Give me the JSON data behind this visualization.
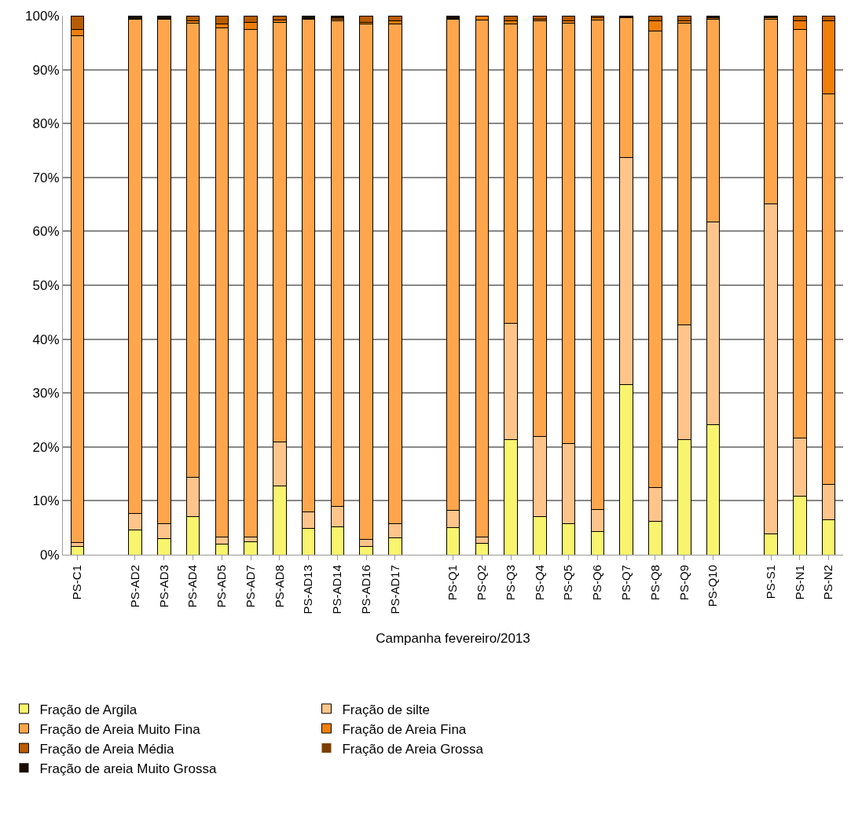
{
  "chart_data": {
    "type": "bar",
    "stacked": true,
    "xlabel": "Campanha fevereiro/2013",
    "categories": [
      "PS-C1",
      null,
      "PS-AD2",
      "PS-AD3",
      "PS-AD4",
      "PS-AD5",
      "PS-AD7",
      "PS-AD8",
      "PS-AD13",
      "PS-AD14",
      "PS-AD16",
      "PS-AD17",
      null,
      "PS-Q1",
      "PS-Q2",
      "PS-Q3",
      "PS-Q4",
      "PS-Q5",
      "PS-Q6",
      "PS-Q7",
      "PS-Q8",
      "PS-Q9",
      "PS-Q10",
      null,
      "PS-S1",
      "PS-N1",
      "PS-N2"
    ],
    "series": [
      {
        "name": "Fração de Argila",
        "color": "#f9f46e",
        "values": [
          1.5,
          null,
          4.6,
          3.0,
          7.1,
          1.9,
          2.4,
          12.8,
          4.9,
          5.2,
          1.6,
          3.2,
          null,
          5.0,
          2.1,
          21.4,
          7.0,
          5.7,
          4.3,
          31.6,
          6.2,
          21.4,
          24.1,
          null,
          3.8,
          10.9,
          6.5
        ]
      },
      {
        "name": "Fração de silte",
        "color": "#ffc48a",
        "values": [
          0.7,
          null,
          3.0,
          2.7,
          7.2,
          1.4,
          0.9,
          8.1,
          3.0,
          3.8,
          1.2,
          2.6,
          null,
          3.2,
          1.2,
          21.5,
          14.9,
          14.9,
          4.1,
          42.1,
          6.3,
          21.2,
          37.7,
          null,
          61.3,
          10.7,
          6.6
        ]
      },
      {
        "name": "Fração de Areia Muito Fina",
        "color": "#ffa64d",
        "values": [
          94.1,
          null,
          91.8,
          93.7,
          84.3,
          94.5,
          94.1,
          77.9,
          91.5,
          90.0,
          95.6,
          92.7,
          null,
          91.1,
          95.9,
          55.6,
          77.1,
          78.0,
          90.8,
          25.9,
          84.6,
          56.0,
          37.5,
          null,
          34.2,
          75.8,
          72.4
        ]
      },
      {
        "name": "Fração de Areia Fina",
        "color": "#f07e0a",
        "values": [
          1.1,
          null,
          0,
          0,
          0.5,
          0.7,
          1.4,
          0.4,
          0,
          0.3,
          0.4,
          0.5,
          null,
          0,
          0.8,
          0.5,
          0.4,
          0.5,
          0.4,
          0,
          1.9,
          0.5,
          0,
          null,
          0.4,
          1.7,
          13.5
        ]
      },
      {
        "name": "Fração de Areia Média",
        "color": "#b85c00",
        "values": [
          2.6,
          null,
          0,
          0,
          0.9,
          1.5,
          1.2,
          0.8,
          0,
          0.4,
          1.2,
          1.0,
          null,
          0,
          0,
          1.0,
          0.6,
          0.9,
          0.4,
          0,
          1.0,
          0.9,
          0.4,
          null,
          0,
          0.9,
          1.0
        ]
      },
      {
        "name": "Fração de Areia Grossa",
        "color": "#7a3e00",
        "values": [
          0,
          null,
          0,
          0,
          0,
          0,
          0,
          0,
          0,
          0,
          0,
          0,
          null,
          0,
          0,
          0,
          0,
          0,
          0,
          0,
          0,
          0,
          0,
          null,
          0,
          0,
          0
        ]
      },
      {
        "name": "Fração de areia Muito Grossa",
        "color": "#1a0d00",
        "values": [
          0,
          null,
          0.6,
          0.6,
          0,
          0,
          0,
          0,
          0.6,
          0.3,
          0,
          0,
          null,
          0.7,
          0,
          0,
          0,
          0,
          0,
          0.4,
          0,
          0,
          0.3,
          null,
          0.3,
          0,
          0
        ]
      }
    ],
    "ylim": [
      0,
      100
    ],
    "yticks": [
      {
        "value": 0,
        "label": "0%"
      },
      {
        "value": 10,
        "label": "10%"
      },
      {
        "value": 20,
        "label": "20%"
      },
      {
        "value": 30,
        "label": "30%"
      },
      {
        "value": 40,
        "label": "40%"
      },
      {
        "value": 50,
        "label": "50%"
      },
      {
        "value": 60,
        "label": "60%"
      },
      {
        "value": 70,
        "label": "70%"
      },
      {
        "value": 80,
        "label": "80%"
      },
      {
        "value": 90,
        "label": "90%"
      },
      {
        "value": 100,
        "label": "100%"
      }
    ],
    "grid": "y",
    "legend": "bottom"
  }
}
